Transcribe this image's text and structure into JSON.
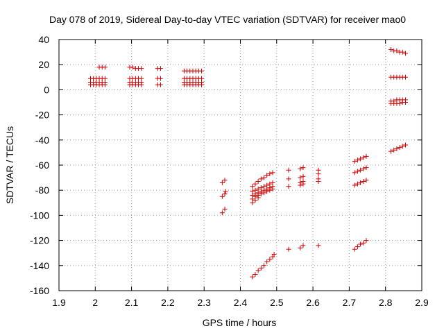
{
  "chart_data": {
    "type": "scatter",
    "title": "Day 078 of 2019, Sidereal Day-to-day VTEC variation (SDTVAR) for receiver mao0",
    "xlabel": "GPS time / hours",
    "ylabel": "SDTVAR / TECUs",
    "xlim": [
      1.9,
      2.9
    ],
    "ylim": [
      -160,
      40
    ],
    "xticks": [
      "1.9",
      "2",
      "2.1",
      "2.2",
      "2.3",
      "2.4",
      "2.5",
      "2.6",
      "2.7",
      "2.8",
      "2.9"
    ],
    "yticks": [
      "-160",
      "-140",
      "-120",
      "-100",
      "-80",
      "-60",
      "-40",
      "-20",
      "0",
      "20",
      "40"
    ],
    "grid": true,
    "marker": "+",
    "color": "#cc0000",
    "series": [
      {
        "name": "mao0",
        "points": [
          [
            1.987,
            9
          ],
          [
            1.995,
            9
          ],
          [
            2.003,
            9
          ],
          [
            2.011,
            9
          ],
          [
            2.019,
            9
          ],
          [
            2.027,
            9
          ],
          [
            1.987,
            6
          ],
          [
            1.995,
            6
          ],
          [
            2.003,
            6
          ],
          [
            2.011,
            6
          ],
          [
            2.019,
            6
          ],
          [
            2.027,
            6
          ],
          [
            1.987,
            4
          ],
          [
            1.995,
            4
          ],
          [
            2.003,
            4
          ],
          [
            2.011,
            4
          ],
          [
            2.019,
            4
          ],
          [
            2.027,
            4
          ],
          [
            2.011,
            18
          ],
          [
            2.019,
            18
          ],
          [
            2.027,
            18
          ],
          [
            2.095,
            18
          ],
          [
            2.103,
            18
          ],
          [
            2.111,
            17
          ],
          [
            2.119,
            17
          ],
          [
            2.127,
            17
          ],
          [
            2.095,
            9
          ],
          [
            2.103,
            9
          ],
          [
            2.111,
            9
          ],
          [
            2.119,
            9
          ],
          [
            2.127,
            9
          ],
          [
            2.095,
            6
          ],
          [
            2.103,
            6
          ],
          [
            2.111,
            6
          ],
          [
            2.119,
            6
          ],
          [
            2.127,
            6
          ],
          [
            2.095,
            4
          ],
          [
            2.103,
            4
          ],
          [
            2.111,
            4
          ],
          [
            2.119,
            4
          ],
          [
            2.127,
            4
          ],
          [
            2.172,
            17
          ],
          [
            2.18,
            17
          ],
          [
            2.172,
            9
          ],
          [
            2.18,
            9
          ],
          [
            2.172,
            4
          ],
          [
            2.18,
            4
          ],
          [
            2.245,
            15
          ],
          [
            2.253,
            15
          ],
          [
            2.261,
            15
          ],
          [
            2.269,
            15
          ],
          [
            2.277,
            15
          ],
          [
            2.285,
            15
          ],
          [
            2.293,
            15
          ],
          [
            2.245,
            9
          ],
          [
            2.253,
            9
          ],
          [
            2.261,
            9
          ],
          [
            2.269,
            9
          ],
          [
            2.277,
            9
          ],
          [
            2.285,
            9
          ],
          [
            2.293,
            9
          ],
          [
            2.245,
            6
          ],
          [
            2.253,
            6
          ],
          [
            2.261,
            6
          ],
          [
            2.269,
            6
          ],
          [
            2.277,
            6
          ],
          [
            2.285,
            6
          ],
          [
            2.293,
            6
          ],
          [
            2.245,
            4
          ],
          [
            2.253,
            4
          ],
          [
            2.261,
            4
          ],
          [
            2.269,
            4
          ],
          [
            2.277,
            4
          ],
          [
            2.285,
            4
          ],
          [
            2.293,
            4
          ],
          [
            2.35,
            -74
          ],
          [
            2.357,
            -72
          ],
          [
            2.35,
            -85
          ],
          [
            2.357,
            -83
          ],
          [
            2.359,
            -81
          ],
          [
            2.35,
            -98
          ],
          [
            2.357,
            -95
          ],
          [
            2.433,
            -77
          ],
          [
            2.441,
            -75
          ],
          [
            2.449,
            -73
          ],
          [
            2.457,
            -71
          ],
          [
            2.465,
            -70
          ],
          [
            2.473,
            -68
          ],
          [
            2.481,
            -67
          ],
          [
            2.489,
            -66
          ],
          [
            2.433,
            -81
          ],
          [
            2.441,
            -80
          ],
          [
            2.449,
            -79
          ],
          [
            2.457,
            -78
          ],
          [
            2.465,
            -77
          ],
          [
            2.473,
            -76
          ],
          [
            2.481,
            -75
          ],
          [
            2.489,
            -74
          ],
          [
            2.433,
            -84
          ],
          [
            2.441,
            -83
          ],
          [
            2.449,
            -82
          ],
          [
            2.457,
            -81
          ],
          [
            2.465,
            -80
          ],
          [
            2.473,
            -79
          ],
          [
            2.481,
            -78
          ],
          [
            2.489,
            -77
          ],
          [
            2.433,
            -87
          ],
          [
            2.441,
            -85
          ],
          [
            2.449,
            -84
          ],
          [
            2.457,
            -83
          ],
          [
            2.465,
            -82
          ],
          [
            2.473,
            -81
          ],
          [
            2.481,
            -80
          ],
          [
            2.489,
            -79
          ],
          [
            2.433,
            -90
          ],
          [
            2.441,
            -88
          ],
          [
            2.449,
            -86
          ],
          [
            2.433,
            -149
          ],
          [
            2.441,
            -147
          ],
          [
            2.449,
            -144
          ],
          [
            2.457,
            -142
          ],
          [
            2.465,
            -140
          ],
          [
            2.473,
            -137
          ],
          [
            2.481,
            -135
          ],
          [
            2.489,
            -133
          ],
          [
            2.493,
            -131
          ],
          [
            2.533,
            -64
          ],
          [
            2.533,
            -71
          ],
          [
            2.533,
            -77
          ],
          [
            2.533,
            -127
          ],
          [
            2.565,
            -63
          ],
          [
            2.573,
            -62
          ],
          [
            2.565,
            -70
          ],
          [
            2.573,
            -69
          ],
          [
            2.565,
            -74
          ],
          [
            2.573,
            -73
          ],
          [
            2.565,
            -76
          ],
          [
            2.573,
            -75
          ],
          [
            2.565,
            -126
          ],
          [
            2.573,
            -124
          ],
          [
            2.615,
            -64
          ],
          [
            2.615,
            -67
          ],
          [
            2.615,
            -71
          ],
          [
            2.615,
            -73
          ],
          [
            2.615,
            -124
          ],
          [
            2.715,
            -57
          ],
          [
            2.723,
            -56
          ],
          [
            2.731,
            -55
          ],
          [
            2.739,
            -54
          ],
          [
            2.747,
            -53
          ],
          [
            2.715,
            -66
          ],
          [
            2.723,
            -65
          ],
          [
            2.731,
            -64
          ],
          [
            2.739,
            -63
          ],
          [
            2.747,
            -62
          ],
          [
            2.715,
            -76
          ],
          [
            2.723,
            -75
          ],
          [
            2.731,
            -74
          ],
          [
            2.739,
            -73
          ],
          [
            2.747,
            -72
          ],
          [
            2.715,
            -127
          ],
          [
            2.723,
            -125
          ],
          [
            2.731,
            -123
          ],
          [
            2.739,
            -122
          ],
          [
            2.747,
            -120
          ],
          [
            2.815,
            32
          ],
          [
            2.823,
            31
          ],
          [
            2.831,
            31
          ],
          [
            2.839,
            30
          ],
          [
            2.847,
            30
          ],
          [
            2.855,
            29
          ],
          [
            2.815,
            10
          ],
          [
            2.823,
            10
          ],
          [
            2.831,
            10
          ],
          [
            2.839,
            10
          ],
          [
            2.847,
            10
          ],
          [
            2.855,
            10
          ],
          [
            2.815,
            -9
          ],
          [
            2.823,
            -9
          ],
          [
            2.831,
            -8
          ],
          [
            2.839,
            -8
          ],
          [
            2.847,
            -8
          ],
          [
            2.855,
            -8
          ],
          [
            2.815,
            -11
          ],
          [
            2.823,
            -11
          ],
          [
            2.831,
            -11
          ],
          [
            2.839,
            -11
          ],
          [
            2.847,
            -10
          ],
          [
            2.855,
            -10
          ],
          [
            2.815,
            -49
          ],
          [
            2.823,
            -48
          ],
          [
            2.831,
            -47
          ],
          [
            2.839,
            -46
          ],
          [
            2.847,
            -45
          ],
          [
            2.855,
            -44
          ]
        ]
      }
    ]
  }
}
